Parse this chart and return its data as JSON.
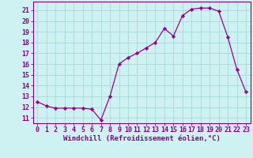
{
  "x": [
    0,
    1,
    2,
    3,
    4,
    5,
    6,
    7,
    8,
    9,
    10,
    11,
    12,
    13,
    14,
    15,
    16,
    17,
    18,
    19,
    20,
    21,
    22,
    23
  ],
  "y": [
    12.5,
    12.1,
    11.9,
    11.9,
    11.9,
    11.9,
    11.8,
    10.8,
    13.0,
    16.0,
    16.6,
    17.0,
    17.5,
    18.0,
    19.3,
    18.6,
    20.5,
    21.1,
    21.2,
    21.2,
    20.9,
    18.5,
    15.5,
    13.4
  ],
  "line_color": "#990099",
  "marker": "D",
  "marker_size": 2.2,
  "bg_color": "#cef2f2",
  "grid_color": "#aadddd",
  "xlabel": "Windchill (Refroidissement éolien,°C)",
  "xlabel_fontsize": 6.5,
  "tick_fontsize": 6.0,
  "ylim": [
    10.5,
    21.8
  ],
  "yticks": [
    11,
    12,
    13,
    14,
    15,
    16,
    17,
    18,
    19,
    20,
    21
  ],
  "xticks": [
    0,
    1,
    2,
    3,
    4,
    5,
    6,
    7,
    8,
    9,
    10,
    11,
    12,
    13,
    14,
    15,
    16,
    17,
    18,
    19,
    20,
    21,
    22,
    23
  ],
  "spine_color": "#880088",
  "tick_color": "#880088",
  "label_color": "#880088",
  "xlim": [
    -0.5,
    23.5
  ]
}
